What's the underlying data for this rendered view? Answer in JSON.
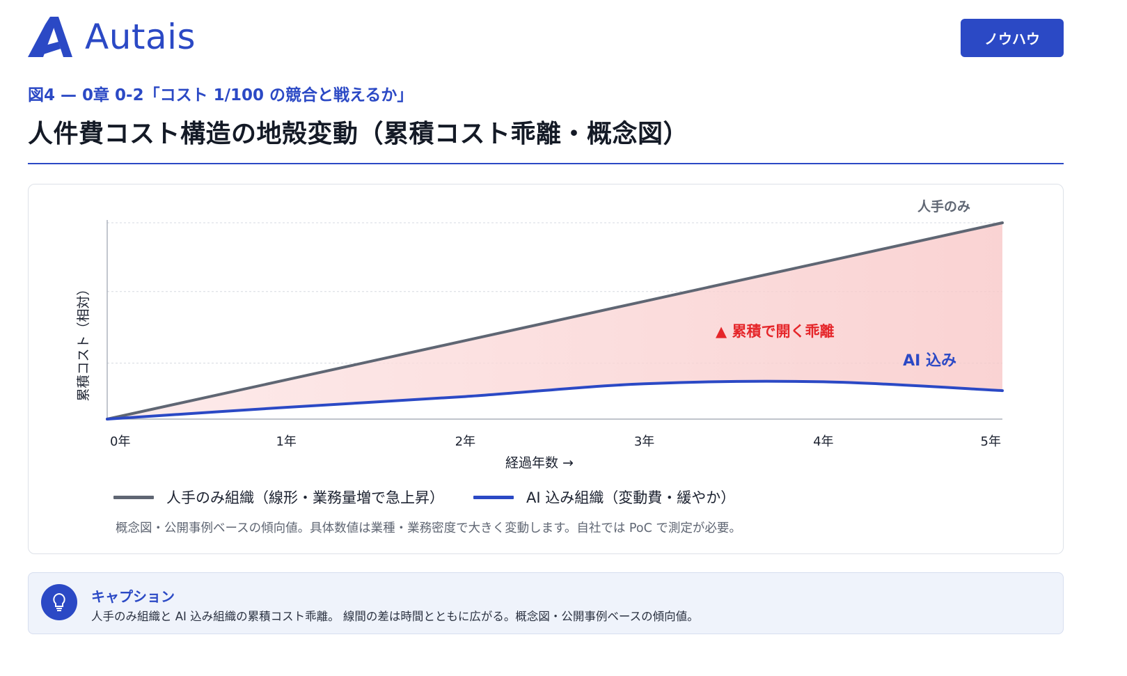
{
  "brand": {
    "name": "Autais",
    "color": "#2b49c5"
  },
  "header": {
    "tag_label": "ノウハウ"
  },
  "figure": {
    "subtitle": "図4 — 0章 0-2「コスト 1/100 の競合と戦えるか」",
    "title": "人件費コスト構造の地殻変動（累積コスト乖離・概念図）"
  },
  "chart_data": {
    "type": "line",
    "x": [
      0,
      1,
      2,
      3,
      4,
      5
    ],
    "x_tick_labels": [
      "0年",
      "1年",
      "2年",
      "3年",
      "4年",
      "5年"
    ],
    "xlabel": "経過年数 →",
    "ylabel": "累積コスト（相対）",
    "y_tick_labels": [],
    "ylim": [
      0,
      100
    ],
    "grid": "horizontal-dashed",
    "series": [
      {
        "name": "人手のみ組織（線形・業務量増で急上昇）",
        "end_label": "人手のみ",
        "color": "#5f6673",
        "values": [
          0,
          20,
          40,
          60,
          80,
          100
        ]
      },
      {
        "name": "AI 込み組織（変動費・緩やか）",
        "end_label": "AI 込み",
        "color": "#2b49c5",
        "values": [
          0,
          6,
          11.5,
          18,
          19,
          14.5
        ]
      }
    ],
    "annotations": [
      {
        "text": "▲ 累積で開く乖離",
        "color": "#e5262a"
      }
    ],
    "fill_between": {
      "color": "#f8c8c8"
    },
    "legend_position": "bottom"
  },
  "note": "概念図・公開事例ベースの傾向値。具体数値は業種・業務密度で大きく変動します。自社では PoC で測定が必要。",
  "caption": {
    "title": "キャプション",
    "body": "人手のみ組織と AI 込み組織の累積コスト乖離。 線間の差は時間とともに広がる。概念図・公開事例ベースの傾向値。",
    "icon": "lightbulb-icon"
  }
}
